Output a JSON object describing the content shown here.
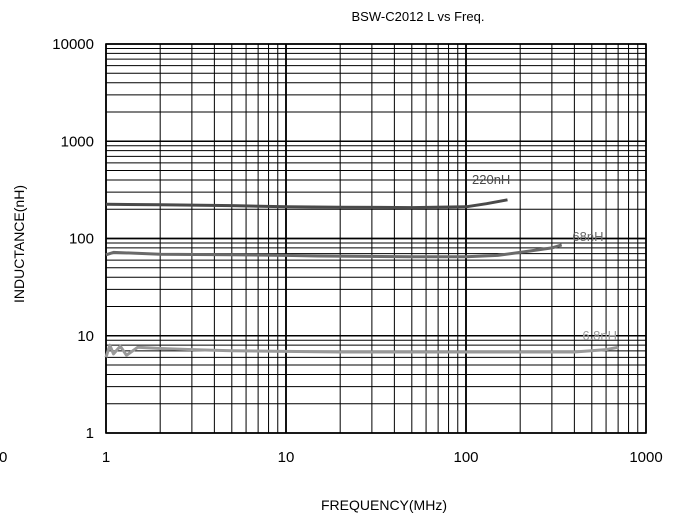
{
  "chart_data": {
    "type": "line",
    "title": "BSW-C2012 L vs Freq.",
    "xlabel": "FREQUENCY(MHz)",
    "ylabel": "INDUCTANCE(nH)",
    "x_scale": "log",
    "y_scale": "log",
    "xlim": [
      1,
      1000
    ],
    "ylim": [
      1,
      10000
    ],
    "x_ticks": [
      "1",
      "10",
      "100",
      "1000"
    ],
    "y_ticks": [
      "1",
      "10",
      "100",
      "1000",
      "10000"
    ],
    "stray_tick_label": "0",
    "grid": true,
    "series": [
      {
        "name": "220nH",
        "color": "#4a4a4a",
        "x": [
          1,
          2,
          5,
          10,
          20,
          50,
          100,
          130,
          170
        ],
        "y": [
          225,
          222,
          218,
          212,
          210,
          208,
          212,
          228,
          250
        ]
      },
      {
        "name": "68nH",
        "color": "#6a6a6a",
        "x": [
          1,
          1.1,
          2,
          5,
          10,
          15,
          50,
          100,
          150,
          200,
          300,
          340
        ],
        "y": [
          68,
          72,
          69,
          68,
          67,
          66,
          65,
          65,
          67,
          72,
          80,
          86
        ]
      },
      {
        "name": "6.8nH",
        "color": "#9a9a9a",
        "x": [
          1,
          1.05,
          1.1,
          1.2,
          1.3,
          1.5,
          2,
          3,
          5,
          10,
          20,
          50,
          100,
          200,
          400,
          600,
          700
        ],
        "y": [
          6.0,
          8.0,
          6.5,
          7.8,
          6.3,
          7.6,
          7.4,
          7.2,
          7.0,
          6.9,
          6.8,
          6.8,
          6.8,
          6.8,
          6.8,
          7.2,
          7.6
        ]
      }
    ]
  }
}
